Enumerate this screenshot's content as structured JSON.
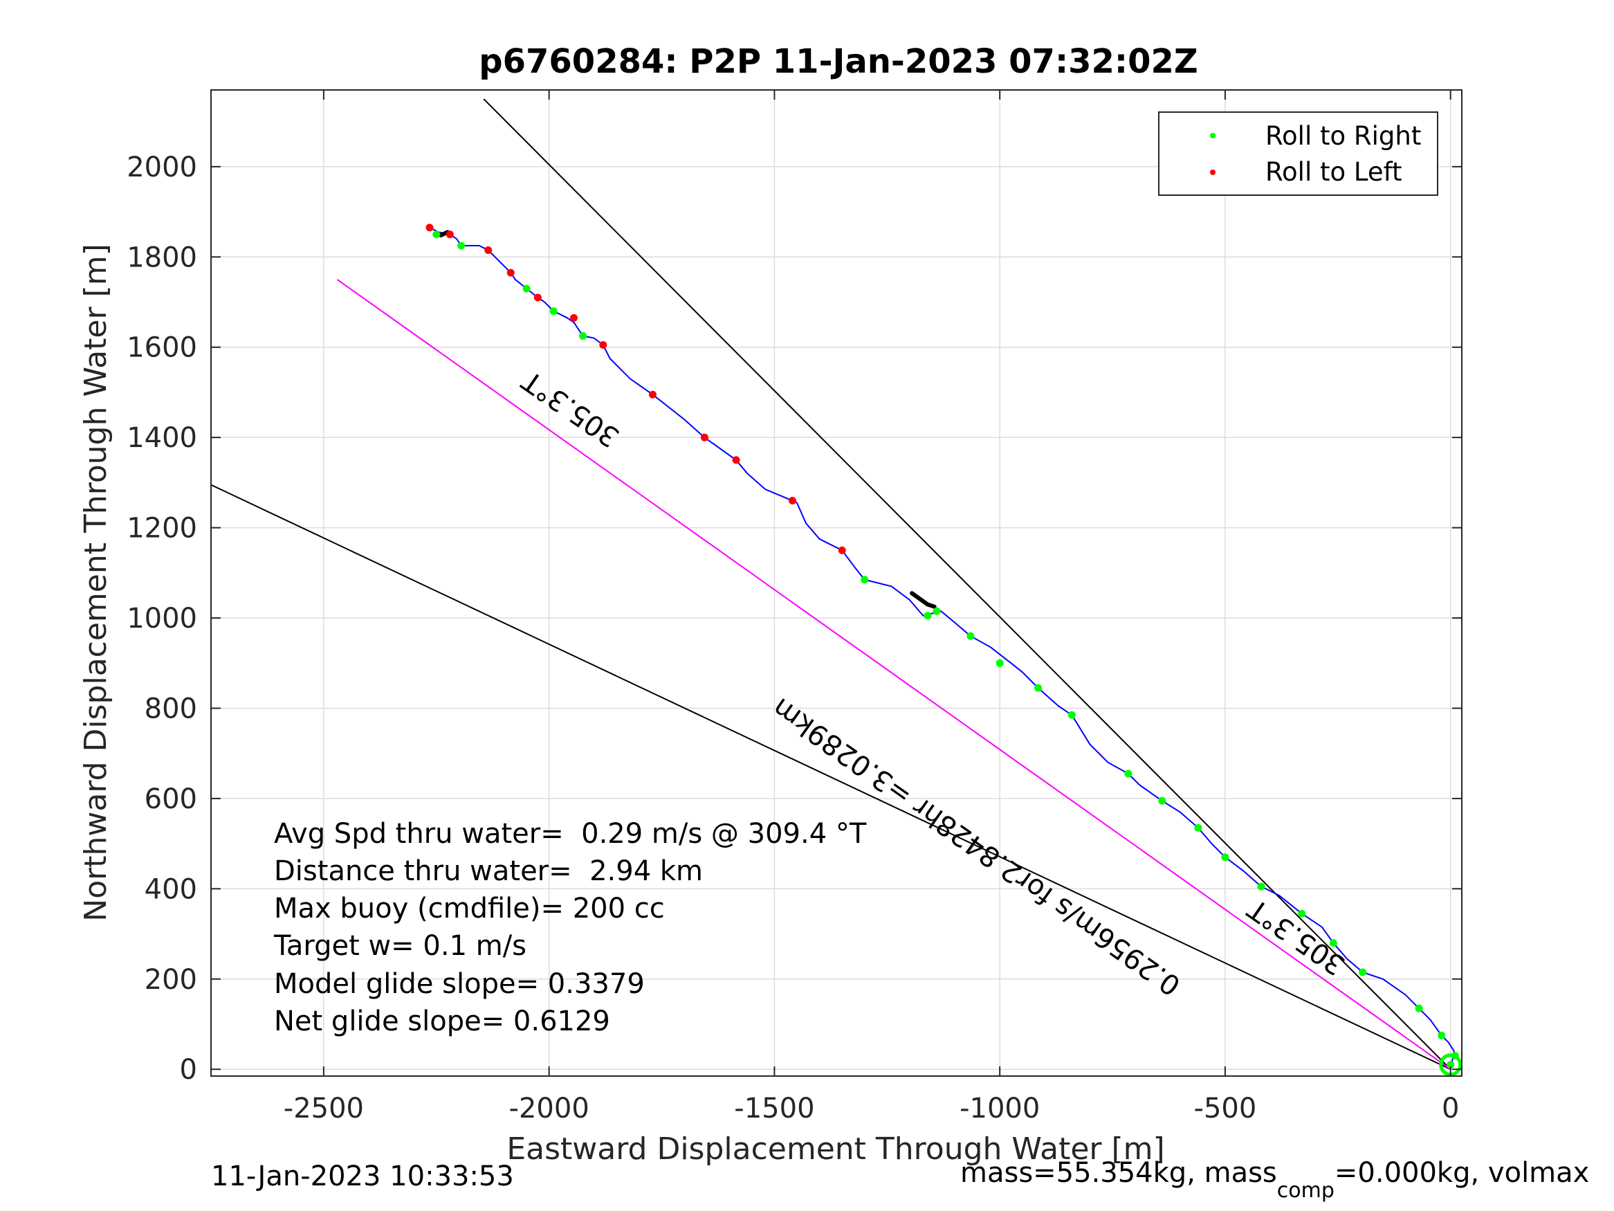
{
  "chart_data": {
    "type": "line",
    "title": "p6760284: P2P 11-Jan-2023 07:32:02Z",
    "xlabel": "Eastward Displacement Through Water [m]",
    "ylabel": "Northward Displacement Through Water [m]",
    "xlim": [
      -2750,
      25
    ],
    "ylim": [
      -15,
      2170
    ],
    "xticks": [
      -2500,
      -2000,
      -1500,
      -1000,
      -500,
      0
    ],
    "yticks": [
      0,
      200,
      400,
      600,
      800,
      1000,
      1200,
      1400,
      1600,
      1800,
      2000
    ],
    "xtick_labels": [
      "-2500",
      "-2000",
      "-1500",
      "-1000",
      "-500",
      "0"
    ],
    "ytick_labels": [
      "0",
      "200",
      "400",
      "600",
      "800",
      "1000",
      "1200",
      "1400",
      "1600",
      "1800",
      "2000"
    ],
    "grid": true,
    "legend_position": "top-right",
    "legend": [
      {
        "label": "Roll to Right",
        "color": "#00ff00"
      },
      {
        "label": "Roll to Left",
        "color": "#ff0000"
      }
    ],
    "track": {
      "color": "#0000ff",
      "points": [
        [
          0,
          0
        ],
        [
          5,
          25
        ],
        [
          8,
          40
        ],
        [
          -5,
          60
        ],
        [
          -20,
          75
        ],
        [
          -45,
          110
        ],
        [
          -70,
          135
        ],
        [
          -100,
          165
        ],
        [
          -150,
          200
        ],
        [
          -195,
          215
        ],
        [
          -230,
          245
        ],
        [
          -260,
          280
        ],
        [
          -285,
          315
        ],
        [
          -330,
          345
        ],
        [
          -380,
          385
        ],
        [
          -420,
          405
        ],
        [
          -460,
          440
        ],
        [
          -500,
          470
        ],
        [
          -530,
          500
        ],
        [
          -560,
          535
        ],
        [
          -600,
          570
        ],
        [
          -640,
          595
        ],
        [
          -690,
          630
        ],
        [
          -715,
          655
        ],
        [
          -760,
          680
        ],
        [
          -800,
          720
        ],
        [
          -840,
          785
        ],
        [
          -870,
          805
        ],
        [
          -915,
          845
        ],
        [
          -950,
          880
        ],
        [
          -975,
          900
        ],
        [
          -1020,
          935
        ],
        [
          -1065,
          960
        ],
        [
          -1100,
          990
        ],
        [
          -1130,
          1015
        ],
        [
          -1150,
          1010
        ],
        [
          -1170,
          1005
        ],
        [
          -1200,
          1040
        ],
        [
          -1240,
          1070
        ],
        [
          -1300,
          1085
        ],
        [
          -1320,
          1110
        ],
        [
          -1350,
          1150
        ],
        [
          -1400,
          1175
        ],
        [
          -1430,
          1210
        ],
        [
          -1450,
          1255
        ],
        [
          -1460,
          1260
        ],
        [
          -1520,
          1285
        ],
        [
          -1560,
          1320
        ],
        [
          -1585,
          1350
        ],
        [
          -1620,
          1375
        ],
        [
          -1655,
          1400
        ],
        [
          -1700,
          1440
        ],
        [
          -1770,
          1495
        ],
        [
          -1820,
          1530
        ],
        [
          -1865,
          1575
        ],
        [
          -1880,
          1605
        ],
        [
          -1900,
          1620
        ],
        [
          -1925,
          1625
        ],
        [
          -1945,
          1655
        ],
        [
          -1960,
          1665
        ],
        [
          -1990,
          1680
        ],
        [
          -2010,
          1700
        ],
        [
          -2025,
          1710
        ],
        [
          -2050,
          1730
        ],
        [
          -2075,
          1750
        ],
        [
          -2085,
          1765
        ],
        [
          -2110,
          1790
        ],
        [
          -2135,
          1815
        ],
        [
          -2155,
          1825
        ],
        [
          -2195,
          1825
        ],
        [
          -2205,
          1840
        ],
        [
          -2220,
          1850
        ],
        [
          -2245,
          1855
        ],
        [
          -2255,
          1860
        ],
        [
          -2265,
          1865
        ]
      ]
    },
    "roll_right_points": [
      [
        0,
        10
      ],
      [
        10,
        30
      ],
      [
        -20,
        75
      ],
      [
        -70,
        135
      ],
      [
        -195,
        215
      ],
      [
        -260,
        280
      ],
      [
        -330,
        345
      ],
      [
        -420,
        405
      ],
      [
        -500,
        470
      ],
      [
        -560,
        535
      ],
      [
        -640,
        595
      ],
      [
        -715,
        655
      ],
      [
        -840,
        785
      ],
      [
        -915,
        845
      ],
      [
        -1000,
        900
      ],
      [
        -1065,
        960
      ],
      [
        -1140,
        1015
      ],
      [
        -1160,
        1005
      ],
      [
        -1300,
        1085
      ],
      [
        -1925,
        1625
      ],
      [
        -1990,
        1680
      ],
      [
        -2050,
        1730
      ],
      [
        -2195,
        1825
      ],
      [
        -2250,
        1850
      ]
    ],
    "roll_left_points": [
      [
        -1350,
        1150
      ],
      [
        -1460,
        1260
      ],
      [
        -1585,
        1350
      ],
      [
        -1655,
        1400
      ],
      [
        -1770,
        1495
      ],
      [
        -1880,
        1605
      ],
      [
        -1945,
        1665
      ],
      [
        -2025,
        1710
      ],
      [
        -2085,
        1765
      ],
      [
        -2135,
        1815
      ],
      [
        -2220,
        1850
      ],
      [
        -2265,
        1865
      ]
    ],
    "black_segments": [
      [
        [
          -1195,
          1055
        ],
        [
          -1160,
          1030
        ],
        [
          -1145,
          1025
        ]
      ],
      [
        [
          -2240,
          1848
        ],
        [
          -2225,
          1855
        ]
      ]
    ],
    "reference_lines": [
      {
        "name": "upper-bearing-line",
        "color": "#000000",
        "points": [
          [
            0,
            0
          ],
          [
            -2145,
            2150
          ]
        ]
      },
      {
        "name": "lower-bearing-line",
        "color": "#000000",
        "points": [
          [
            0,
            0
          ],
          [
            -2750,
            1295
          ]
        ]
      },
      {
        "name": "course-line",
        "color": "#ff00ff",
        "points": [
          [
            0,
            0
          ],
          [
            -2470,
            1750
          ]
        ]
      }
    ],
    "annotations": [
      {
        "text": "305.3°T",
        "x": -1940,
        "y": 1480,
        "rotation": 214.7
      },
      {
        "text": "305.3°T",
        "x": -330,
        "y": 310,
        "rotation": 214.7
      },
      {
        "text": "0.2956m/s for2.8428hr =3.0289km",
        "x": -1040,
        "y": 510,
        "rotation": 215.3
      }
    ],
    "stats": [
      "Avg Spd thru water=  0.29 m/s @ 309.4 °T",
      "Distance thru water=  2.94 km",
      "Max buoy (cmdfile)= 200 cc",
      "Target w= 0.1 m/s",
      "Model glide slope= 0.3379",
      "Net glide slope= 0.6129"
    ],
    "footer_left": "11-Jan-2023 10:33:53",
    "footer_right": {
      "prefix": "mass=55.354kg, mass",
      "subscript": "comp",
      "suffix": "=0.000kg, volmax"
    }
  }
}
